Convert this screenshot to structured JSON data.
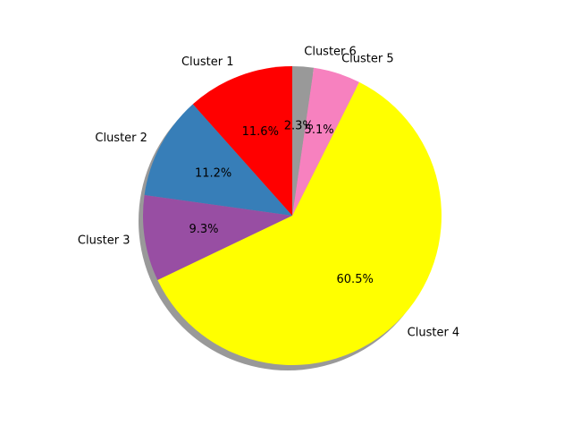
{
  "chart_data": {
    "type": "pie",
    "categories": [
      "Cluster 1",
      "Cluster 2",
      "Cluster 3",
      "Cluster 4",
      "Cluster 5",
      "Cluster 6"
    ],
    "values": [
      11.6,
      11.2,
      9.3,
      60.5,
      5.1,
      2.3
    ],
    "pct_labels": [
      "11.6%",
      "11.2%",
      "9.3%",
      "60.5%",
      "5.1%",
      "2.3%"
    ],
    "colors": [
      "#ff0000",
      "#377eb8",
      "#984ea3",
      "#ffff00",
      "#f781bf",
      "#999999"
    ],
    "start_angle_deg": 90,
    "direction": "counterclockwise",
    "shadow": true
  }
}
